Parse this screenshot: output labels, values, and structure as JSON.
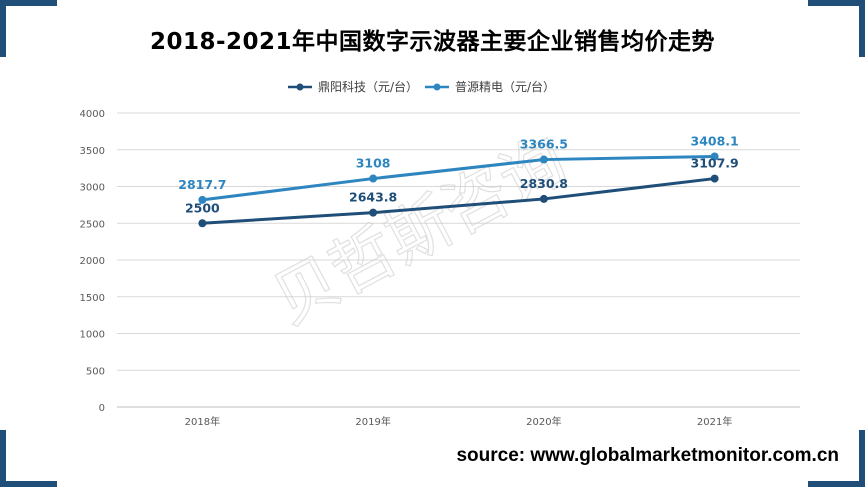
{
  "chart_data": {
    "type": "line",
    "title": "2018-2021年中国数字示波器主要企业销售均价走势",
    "categories": [
      "2018年",
      "2019年",
      "2020年",
      "2021年"
    ],
    "series": [
      {
        "name": "鼎阳科技（元/台）",
        "values": [
          2500,
          2643.8,
          2830.8,
          3107.9
        ],
        "labels": [
          "2500",
          "2643.8",
          "2830.8",
          "3107.9"
        ],
        "color": "#1f4e79"
      },
      {
        "name": "普源精电（元/台）",
        "values": [
          2817.7,
          3108,
          3366.5,
          3408.1
        ],
        "labels": [
          "2817.7",
          "3108",
          "3366.5",
          "3408.1"
        ],
        "color": "#2e86c1"
      }
    ],
    "ylim": [
      0,
      4000
    ],
    "yticks": [
      "0",
      "500",
      "1000",
      "1500",
      "2000",
      "2500",
      "3000",
      "3500",
      "4000"
    ],
    "grid": true,
    "legend": "top"
  },
  "watermark": "贝哲斯咨询",
  "source": "source: www.globalmarketmonitor.com.cn"
}
